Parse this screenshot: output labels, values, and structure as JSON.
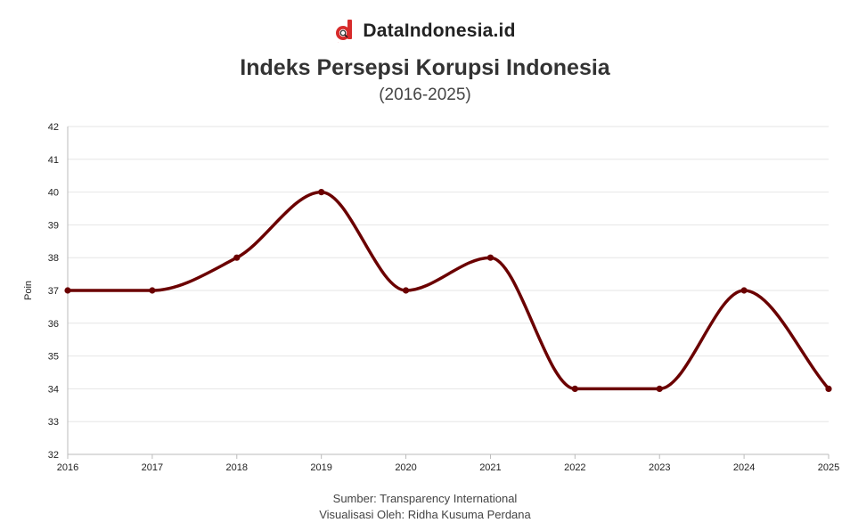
{
  "brand": {
    "logo_letter": "d",
    "name": "DataIndonesia.id"
  },
  "footer": {
    "source": "Sumber: Transparency International",
    "credit": "Visualisasi Oleh: Ridha Kusuma Perdana"
  },
  "colors": {
    "line": "#6b0000",
    "grid": "#e6e6e6",
    "axis": "#bbbbbb",
    "brand_red": "#d72b2b"
  },
  "chart_data": {
    "type": "line",
    "title": "Indeks Persepsi Korupsi Indonesia",
    "subtitle": "(2016-2025)",
    "xlabel": "",
    "ylabel": "Poin",
    "x": [
      2016,
      2017,
      2018,
      2019,
      2020,
      2021,
      2022,
      2023,
      2024,
      2025
    ],
    "series": [
      {
        "name": "Indeks Persepsi Korupsi",
        "values": [
          37,
          37,
          38,
          40,
          37,
          38,
          34,
          34,
          37,
          34
        ]
      }
    ],
    "ylim": [
      32,
      42
    ],
    "yticks": [
      32,
      33,
      34,
      35,
      36,
      37,
      38,
      39,
      40,
      41,
      42
    ],
    "grid": true,
    "smooth": true
  }
}
